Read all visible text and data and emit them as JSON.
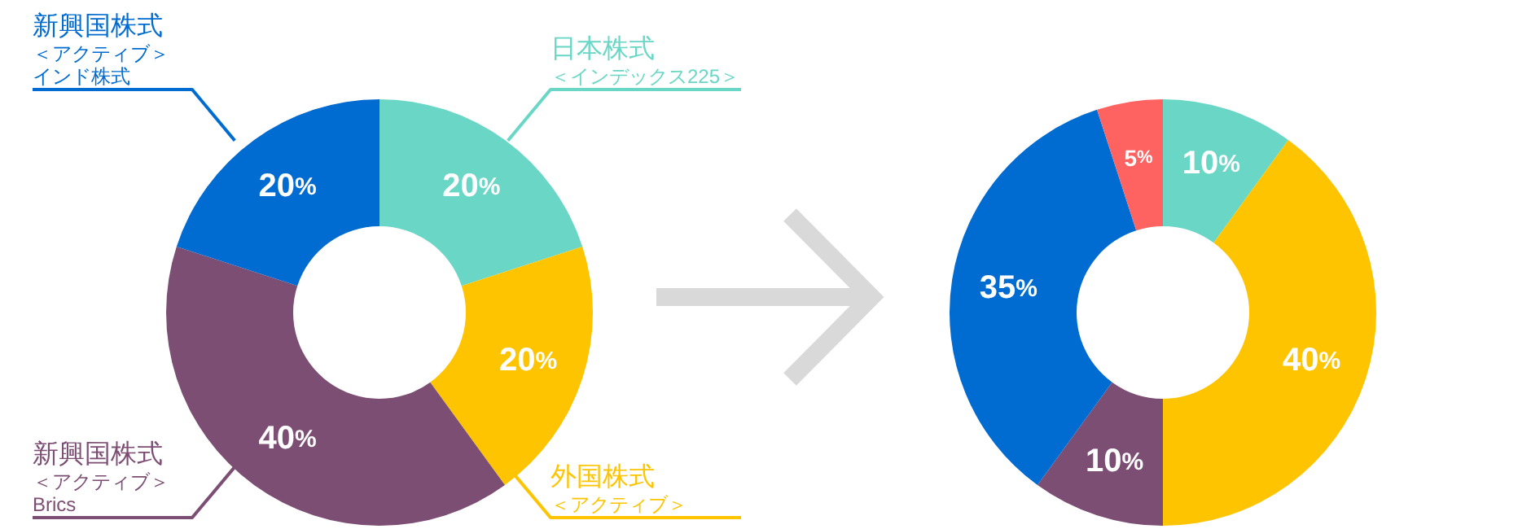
{
  "chart_data": [
    {
      "type": "donut",
      "categories": [
        "日本株式＜インデックス225＞",
        "外国株式＜アクティブ＞",
        "新興国株式＜アクティブ＞Brics",
        "新興国株式＜アクティブ＞インド株式"
      ],
      "values": [
        20,
        20,
        40,
        20
      ],
      "colors": [
        "#6ad7c6",
        "#fec400",
        "#7c4e73",
        "#006bd0"
      ],
      "value_labels": [
        "20%",
        "20%",
        "40%",
        "20%"
      ]
    },
    {
      "type": "donut",
      "categories": [
        null,
        null,
        null,
        null,
        null
      ],
      "values": [
        10,
        40,
        10,
        35,
        5
      ],
      "colors": [
        "#6ad7c6",
        "#fec400",
        "#7c4e73",
        "#006bd0",
        "#ff6361"
      ],
      "value_labels": [
        "10%",
        "40%",
        "10%",
        "35%",
        "5%"
      ]
    }
  ]
}
